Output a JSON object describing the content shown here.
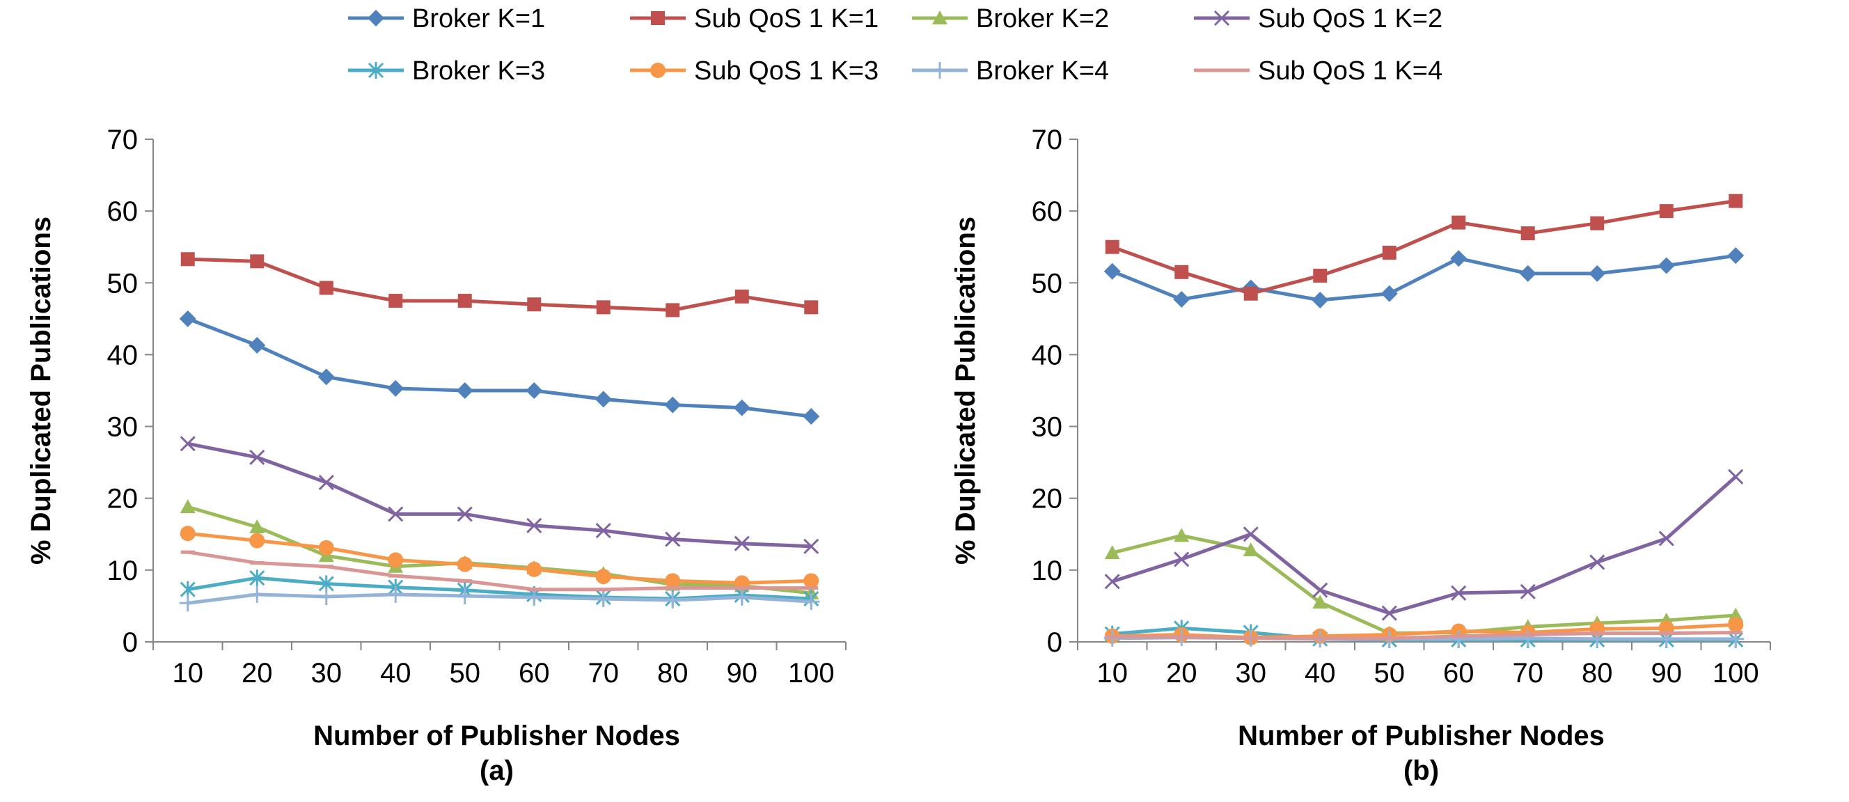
{
  "legend": [
    {
      "name": "Broker K=1",
      "color": "#4F81BD",
      "marker": "diamond"
    },
    {
      "name": "Sub QoS 1 K=1",
      "color": "#C0504D",
      "marker": "square"
    },
    {
      "name": "Broker K=2",
      "color": "#9BBB59",
      "marker": "triangle"
    },
    {
      "name": "Sub QoS 1 K=2",
      "color": "#8064A2",
      "marker": "x"
    },
    {
      "name": "Broker K=3",
      "color": "#4BACC6",
      "marker": "star"
    },
    {
      "name": "Sub QoS 1 K=3",
      "color": "#F79646",
      "marker": "circle"
    },
    {
      "name": "Broker K=4",
      "color": "#95B3D7",
      "marker": "plus"
    },
    {
      "name": "Sub QoS 1 K=4",
      "color": "#D99694",
      "marker": "dash"
    }
  ],
  "chart_data": [
    {
      "type": "line",
      "panel_label": "(a)",
      "xlabel": "Number of Publisher Nodes",
      "ylabel": "% Duplicated Publications",
      "categories": [
        "10",
        "20",
        "30",
        "40",
        "50",
        "60",
        "70",
        "80",
        "90",
        "100"
      ],
      "ylim": [
        0,
        70
      ],
      "yticks": [
        0,
        10,
        20,
        30,
        40,
        50,
        60,
        70
      ],
      "grid": false,
      "series": [
        {
          "name": "Broker K=1",
          "values": [
            45,
            41.3,
            36.9,
            35.3,
            35,
            35,
            33.8,
            33,
            32.6,
            31.4
          ]
        },
        {
          "name": "Sub QoS 1 K=1",
          "values": [
            53.3,
            53,
            49.3,
            47.5,
            47.5,
            47,
            46.6,
            46.2,
            48.1,
            46.6
          ]
        },
        {
          "name": "Broker K=2",
          "values": [
            18.8,
            16,
            12,
            10.5,
            11,
            10.3,
            9.5,
            8,
            7.8,
            6.8
          ]
        },
        {
          "name": "Sub QoS 1 K=2",
          "values": [
            27.6,
            25.7,
            22.2,
            17.8,
            17.8,
            16.2,
            15.5,
            14.3,
            13.7,
            13.3
          ]
        },
        {
          "name": "Broker K=3",
          "values": [
            7.3,
            8.9,
            8.1,
            7.6,
            7.2,
            6.6,
            6.2,
            6,
            6.5,
            6
          ]
        },
        {
          "name": "Sub QoS 1 K=3",
          "values": [
            15.1,
            14.1,
            13.1,
            11.4,
            10.8,
            10.1,
            9.1,
            8.5,
            8.2,
            8.5
          ]
        },
        {
          "name": "Broker K=4",
          "values": [
            5.4,
            6.6,
            6.3,
            6.6,
            6.4,
            6.2,
            6,
            5.8,
            6.2,
            5.6
          ]
        },
        {
          "name": "Sub QoS 1 K=4",
          "values": [
            12.5,
            11,
            10.5,
            9.2,
            8.5,
            7.3,
            7.3,
            7.5,
            7.5,
            7.5
          ]
        }
      ]
    },
    {
      "type": "line",
      "panel_label": "(b)",
      "xlabel": "Number of Publisher Nodes",
      "ylabel": "% Duplicated Publications",
      "categories": [
        "10",
        "20",
        "30",
        "40",
        "50",
        "60",
        "70",
        "80",
        "90",
        "100"
      ],
      "ylim": [
        0,
        70
      ],
      "yticks": [
        0,
        10,
        20,
        30,
        40,
        50,
        60,
        70
      ],
      "grid": false,
      "series": [
        {
          "name": "Broker K=1",
          "values": [
            51.6,
            47.7,
            49.3,
            47.6,
            48.5,
            53.4,
            51.3,
            51.3,
            52.4,
            53.8
          ]
        },
        {
          "name": "Sub QoS 1 K=1",
          "values": [
            55,
            51.5,
            48.5,
            51,
            54.2,
            58.4,
            56.9,
            58.3,
            60,
            61.4
          ]
        },
        {
          "name": "Broker K=2",
          "values": [
            12.4,
            14.8,
            12.8,
            5.5,
            1.2,
            1.3,
            2.1,
            2.6,
            3,
            3.7
          ]
        },
        {
          "name": "Sub QoS 1 K=2",
          "values": [
            8.4,
            11.5,
            15,
            7.2,
            4,
            6.8,
            7,
            11.1,
            14.4,
            23
          ]
        },
        {
          "name": "Broker K=3",
          "values": [
            1.1,
            1.9,
            1.3,
            0.4,
            0.3,
            0.3,
            0.3,
            0.3,
            0.3,
            0.3
          ]
        },
        {
          "name": "Sub QoS 1 K=3",
          "values": [
            0.8,
            1,
            0.6,
            0.8,
            1,
            1.5,
            1.3,
            1.8,
            1.9,
            2.4
          ]
        },
        {
          "name": "Broker K=4",
          "values": [
            0.5,
            0.6,
            0.5,
            0.4,
            0.4,
            0.4,
            0.5,
            0.4,
            0.4,
            0.4
          ]
        },
        {
          "name": "Sub QoS 1 K=4",
          "values": [
            0.7,
            0.7,
            0.5,
            0.5,
            0.5,
            0.8,
            1,
            1.2,
            1.2,
            1.3
          ]
        }
      ]
    }
  ]
}
